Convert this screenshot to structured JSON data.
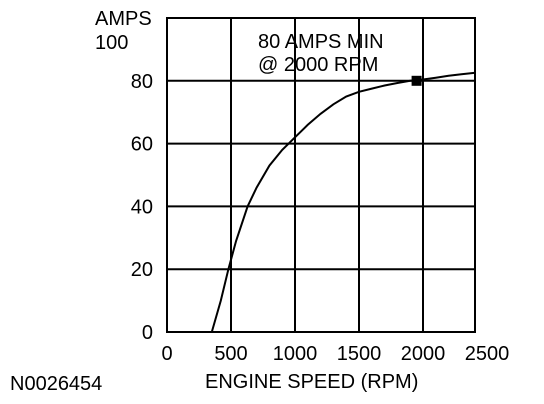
{
  "chart_data": {
    "type": "line",
    "y_unit_label": "AMPS",
    "xlabel": "ENGINE SPEED (RPM)",
    "xlim": [
      0,
      2400
    ],
    "ylim": [
      0,
      100
    ],
    "x_ticks": [
      "0",
      "500",
      "1000",
      "1500",
      "2000",
      "2500"
    ],
    "x_tick_values": [
      0,
      500,
      1000,
      1500,
      2000,
      2500
    ],
    "y_ticks": [
      "0",
      "20",
      "40",
      "60",
      "80",
      "100"
    ],
    "y_tick_values": [
      0,
      20,
      40,
      60,
      80,
      100
    ],
    "grid": true,
    "series": [
      {
        "x": [
          350,
          420,
          480,
          540,
          630,
          700,
          800,
          900,
          1000,
          1100,
          1200,
          1300,
          1400,
          1500,
          1600,
          1700,
          1800,
          1900,
          2000,
          2100,
          2200,
          2300,
          2400
        ],
        "values": [
          0,
          10,
          20,
          29,
          40,
          46,
          53,
          58,
          62,
          66,
          69.5,
          72.5,
          75,
          76.5,
          77.5,
          78.5,
          79.3,
          80,
          80.4,
          81,
          81.6,
          82.1,
          82.5
        ]
      }
    ],
    "marker": {
      "x": 1950,
      "y": 80
    },
    "annotation": [
      "80 AMPS MIN",
      "@ 2000 RPM"
    ]
  },
  "figure_id": "N0026454"
}
